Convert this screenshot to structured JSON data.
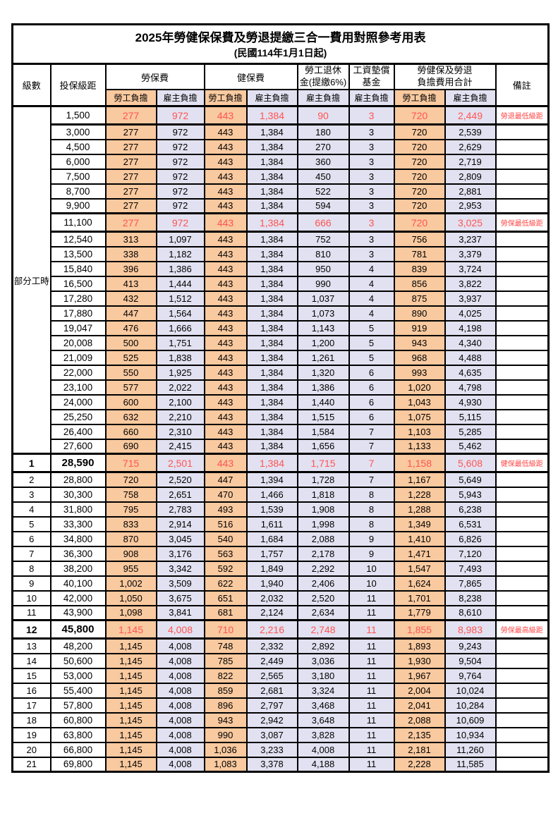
{
  "page": {
    "title": "2025年勞健保保費及勞退提繳三合一費用對照參考用表",
    "subtitle": "(民國114年1月1日起)"
  },
  "columns": {
    "level": "級數",
    "bracket": "投保級距",
    "labor_insurance": "勞保費",
    "health_insurance": "健保費",
    "pension_line1": "勞工退休",
    "pension_line2": "金(提繳6%)",
    "wage_fund_line1": "工資墊償",
    "wage_fund_line2": "基金",
    "total_line1": "勞健保及勞退",
    "total_line2": "負擔費用合計",
    "remark": "備註",
    "employee_share": "勞工負擔",
    "employer_share": "雇主負擔"
  },
  "part_time": {
    "label": "部分工時",
    "row_span": 23
  },
  "colors": {
    "employee_fill": "#F9C99F",
    "employer_fill": "#E2E1F1",
    "highlight_text": "#FF5450",
    "remark_text": "#FF4545"
  },
  "rows": [
    {
      "level": "",
      "bracket": "1,500",
      "values": [
        "277",
        "972",
        "443",
        "1,384",
        "90",
        "3",
        "720",
        "2,449"
      ],
      "remark": "勞退最低級距",
      "highlight": true
    },
    {
      "level": "",
      "bracket": "3,000",
      "values": [
        "277",
        "972",
        "443",
        "1,384",
        "180",
        "3",
        "720",
        "2,539"
      ]
    },
    {
      "level": "",
      "bracket": "4,500",
      "values": [
        "277",
        "972",
        "443",
        "1,384",
        "270",
        "3",
        "720",
        "2,629"
      ]
    },
    {
      "level": "",
      "bracket": "6,000",
      "values": [
        "277",
        "972",
        "443",
        "1,384",
        "360",
        "3",
        "720",
        "2,719"
      ]
    },
    {
      "level": "",
      "bracket": "7,500",
      "values": [
        "277",
        "972",
        "443",
        "1,384",
        "450",
        "3",
        "720",
        "2,809"
      ]
    },
    {
      "level": "",
      "bracket": "8,700",
      "values": [
        "277",
        "972",
        "443",
        "1,384",
        "522",
        "3",
        "720",
        "2,881"
      ]
    },
    {
      "level": "",
      "bracket": "9,900",
      "values": [
        "277",
        "972",
        "443",
        "1,384",
        "594",
        "3",
        "720",
        "2,953"
      ]
    },
    {
      "level": "",
      "bracket": "11,100",
      "values": [
        "277",
        "972",
        "443",
        "1,384",
        "666",
        "3",
        "720",
        "3,025"
      ],
      "remark": "勞保最低級距",
      "highlight": true
    },
    {
      "level": "",
      "bracket": "12,540",
      "values": [
        "313",
        "1,097",
        "443",
        "1,384",
        "752",
        "3",
        "756",
        "3,237"
      ]
    },
    {
      "level": "",
      "bracket": "13,500",
      "values": [
        "338",
        "1,182",
        "443",
        "1,384",
        "810",
        "3",
        "781",
        "3,379"
      ]
    },
    {
      "level": "",
      "bracket": "15,840",
      "values": [
        "396",
        "1,386",
        "443",
        "1,384",
        "950",
        "4",
        "839",
        "3,724"
      ]
    },
    {
      "level": "",
      "bracket": "16,500",
      "values": [
        "413",
        "1,444",
        "443",
        "1,384",
        "990",
        "4",
        "856",
        "3,822"
      ]
    },
    {
      "level": "",
      "bracket": "17,280",
      "values": [
        "432",
        "1,512",
        "443",
        "1,384",
        "1,037",
        "4",
        "875",
        "3,937"
      ]
    },
    {
      "level": "",
      "bracket": "17,880",
      "values": [
        "447",
        "1,564",
        "443",
        "1,384",
        "1,073",
        "4",
        "890",
        "4,025"
      ]
    },
    {
      "level": "",
      "bracket": "19,047",
      "values": [
        "476",
        "1,666",
        "443",
        "1,384",
        "1,143",
        "5",
        "919",
        "4,198"
      ]
    },
    {
      "level": "",
      "bracket": "20,008",
      "values": [
        "500",
        "1,751",
        "443",
        "1,384",
        "1,200",
        "5",
        "943",
        "4,340"
      ]
    },
    {
      "level": "",
      "bracket": "21,009",
      "values": [
        "525",
        "1,838",
        "443",
        "1,384",
        "1,261",
        "5",
        "968",
        "4,488"
      ]
    },
    {
      "level": "",
      "bracket": "22,000",
      "values": [
        "550",
        "1,925",
        "443",
        "1,384",
        "1,320",
        "6",
        "993",
        "4,635"
      ]
    },
    {
      "level": "",
      "bracket": "23,100",
      "values": [
        "577",
        "2,022",
        "443",
        "1,384",
        "1,386",
        "6",
        "1,020",
        "4,798"
      ]
    },
    {
      "level": "",
      "bracket": "24,000",
      "values": [
        "600",
        "2,100",
        "443",
        "1,384",
        "1,440",
        "6",
        "1,043",
        "4,930"
      ]
    },
    {
      "level": "",
      "bracket": "25,250",
      "values": [
        "632",
        "2,210",
        "443",
        "1,384",
        "1,515",
        "6",
        "1,075",
        "5,115"
      ]
    },
    {
      "level": "",
      "bracket": "26,400",
      "values": [
        "660",
        "2,310",
        "443",
        "1,384",
        "1,584",
        "7",
        "1,103",
        "5,285"
      ]
    },
    {
      "level": "",
      "bracket": "27,600",
      "values": [
        "690",
        "2,415",
        "443",
        "1,384",
        "1,656",
        "7",
        "1,133",
        "5,462"
      ]
    },
    {
      "level": "1",
      "bracket": "28,590",
      "values": [
        "715",
        "2,501",
        "443",
        "1,384",
        "1,715",
        "7",
        "1,158",
        "5,608"
      ],
      "remark": "健保最低級距",
      "highlight": true,
      "bold": true
    },
    {
      "level": "2",
      "bracket": "28,800",
      "values": [
        "720",
        "2,520",
        "447",
        "1,394",
        "1,728",
        "7",
        "1,167",
        "5,649"
      ]
    },
    {
      "level": "3",
      "bracket": "30,300",
      "values": [
        "758",
        "2,651",
        "470",
        "1,466",
        "1,818",
        "8",
        "1,228",
        "5,943"
      ]
    },
    {
      "level": "4",
      "bracket": "31,800",
      "values": [
        "795",
        "2,783",
        "493",
        "1,539",
        "1,908",
        "8",
        "1,288",
        "6,238"
      ]
    },
    {
      "level": "5",
      "bracket": "33,300",
      "values": [
        "833",
        "2,914",
        "516",
        "1,611",
        "1,998",
        "8",
        "1,349",
        "6,531"
      ]
    },
    {
      "level": "6",
      "bracket": "34,800",
      "values": [
        "870",
        "3,045",
        "540",
        "1,684",
        "2,088",
        "9",
        "1,410",
        "6,826"
      ]
    },
    {
      "level": "7",
      "bracket": "36,300",
      "values": [
        "908",
        "3,176",
        "563",
        "1,757",
        "2,178",
        "9",
        "1,471",
        "7,120"
      ]
    },
    {
      "level": "8",
      "bracket": "38,200",
      "values": [
        "955",
        "3,342",
        "592",
        "1,849",
        "2,292",
        "10",
        "1,547",
        "7,493"
      ]
    },
    {
      "level": "9",
      "bracket": "40,100",
      "values": [
        "1,002",
        "3,509",
        "622",
        "1,940",
        "2,406",
        "10",
        "1,624",
        "7,865"
      ]
    },
    {
      "level": "10",
      "bracket": "42,000",
      "values": [
        "1,050",
        "3,675",
        "651",
        "2,032",
        "2,520",
        "11",
        "1,701",
        "8,238"
      ]
    },
    {
      "level": "11",
      "bracket": "43,900",
      "values": [
        "1,098",
        "3,841",
        "681",
        "2,124",
        "2,634",
        "11",
        "1,779",
        "8,610"
      ]
    },
    {
      "level": "12",
      "bracket": "45,800",
      "values": [
        "1,145",
        "4,008",
        "710",
        "2,216",
        "2,748",
        "11",
        "1,855",
        "8,983"
      ],
      "remark": "勞保最高級距",
      "highlight": true,
      "bold": true
    },
    {
      "level": "13",
      "bracket": "48,200",
      "values": [
        "1,145",
        "4,008",
        "748",
        "2,332",
        "2,892",
        "11",
        "1,893",
        "9,243"
      ]
    },
    {
      "level": "14",
      "bracket": "50,600",
      "values": [
        "1,145",
        "4,008",
        "785",
        "2,449",
        "3,036",
        "11",
        "1,930",
        "9,504"
      ]
    },
    {
      "level": "15",
      "bracket": "53,000",
      "values": [
        "1,145",
        "4,008",
        "822",
        "2,565",
        "3,180",
        "11",
        "1,967",
        "9,764"
      ]
    },
    {
      "level": "16",
      "bracket": "55,400",
      "values": [
        "1,145",
        "4,008",
        "859",
        "2,681",
        "3,324",
        "11",
        "2,004",
        "10,024"
      ]
    },
    {
      "level": "17",
      "bracket": "57,800",
      "values": [
        "1,145",
        "4,008",
        "896",
        "2,797",
        "3,468",
        "11",
        "2,041",
        "10,284"
      ]
    },
    {
      "level": "18",
      "bracket": "60,800",
      "values": [
        "1,145",
        "4,008",
        "943",
        "2,942",
        "3,648",
        "11",
        "2,088",
        "10,609"
      ]
    },
    {
      "level": "19",
      "bracket": "63,800",
      "values": [
        "1,145",
        "4,008",
        "990",
        "3,087",
        "3,828",
        "11",
        "2,135",
        "10,934"
      ]
    },
    {
      "level": "20",
      "bracket": "66,800",
      "values": [
        "1,145",
        "4,008",
        "1,036",
        "3,233",
        "4,008",
        "11",
        "2,181",
        "11,260"
      ]
    },
    {
      "level": "21",
      "bracket": "69,800",
      "values": [
        "1,145",
        "4,008",
        "1,083",
        "3,378",
        "4,188",
        "11",
        "2,228",
        "11,585"
      ]
    }
  ]
}
